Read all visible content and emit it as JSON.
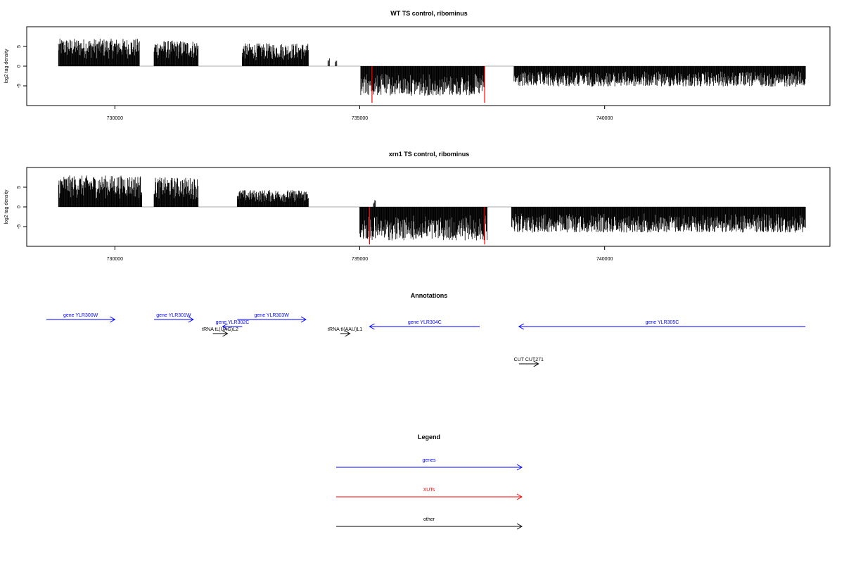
{
  "chart_data": [
    {
      "type": "bar",
      "title": "WT TS control, ribominus",
      "ylabel": "log2 tag density",
      "xlim": [
        728200,
        744600
      ],
      "ylim": [
        -10,
        10
      ],
      "x_ticks": [
        {
          "value": 730000,
          "label": "730000"
        },
        {
          "value": 735000,
          "label": "735000"
        },
        {
          "value": 740000,
          "label": "740000"
        }
      ],
      "y_ticks": [
        {
          "value": 5,
          "label": "5"
        },
        {
          "value": 0,
          "label": "0"
        },
        {
          "value": -5,
          "label": "-5"
        }
      ],
      "series": [
        {
          "strand": "+",
          "color": "#000000",
          "segments": [
            {
              "start": 728850,
              "end": 730500,
              "max": 7.0
            },
            {
              "start": 730800,
              "end": 731700,
              "max": 6.5
            },
            {
              "start": 732600,
              "end": 733950,
              "max": 5.8
            },
            {
              "start": 734350,
              "end": 734380,
              "max": 2.2
            },
            {
              "start": 734500,
              "end": 734530,
              "max": 1.4
            }
          ]
        },
        {
          "strand": "-",
          "color": "#000000",
          "segments": [
            {
              "start": 735020,
              "end": 737550,
              "max": 7.5
            },
            {
              "start": 738150,
              "end": 744100,
              "max": 5.2
            }
          ]
        }
      ],
      "highlight_bars": [
        {
          "x": 735250,
          "value": -9.3,
          "color": "#ff0000"
        },
        {
          "x": 737550,
          "value": -9.3,
          "color": "#ff0000"
        }
      ]
    },
    {
      "type": "bar",
      "title": "xrn1 TS control, ribominus",
      "ylabel": "log2 tag density",
      "xlim": [
        728200,
        744600
      ],
      "ylim": [
        -10,
        10
      ],
      "x_ticks": [
        {
          "value": 730000,
          "label": "730000"
        },
        {
          "value": 735000,
          "label": "735000"
        },
        {
          "value": 740000,
          "label": "740000"
        }
      ],
      "y_ticks": [
        {
          "value": 5,
          "label": "5"
        },
        {
          "value": 0,
          "label": "0"
        },
        {
          "value": -5,
          "label": "-5"
        }
      ],
      "series": [
        {
          "strand": "+",
          "color": "#000000",
          "segments": [
            {
              "start": 728850,
              "end": 730550,
              "max": 8.0
            },
            {
              "start": 730800,
              "end": 731700,
              "max": 7.5
            },
            {
              "start": 732500,
              "end": 733950,
              "max": 4.3
            },
            {
              "start": 735280,
              "end": 735320,
              "max": 1.9
            }
          ]
        },
        {
          "strand": "-",
          "color": "#000000",
          "segments": [
            {
              "start": 735000,
              "end": 737600,
              "max": 8.5
            },
            {
              "start": 738100,
              "end": 744100,
              "max": 6.5
            }
          ]
        }
      ],
      "highlight_bars": [
        {
          "x": 735200,
          "value": -9.5,
          "color": "#ff0000"
        },
        {
          "x": 737550,
          "value": -9.5,
          "color": "#ff0000"
        }
      ]
    }
  ],
  "annotations": {
    "title": "Annotations",
    "features": [
      {
        "label": "gene YLR300W",
        "start": 728600,
        "end": 730000,
        "strand": "+",
        "row": 0,
        "color": "#0000ff"
      },
      {
        "label": "gene YLR301W",
        "start": 730800,
        "end": 731600,
        "strand": "+",
        "row": 0,
        "color": "#0000ff"
      },
      {
        "label": "gene YLR302C",
        "start": 732200,
        "end": 732600,
        "strand": "-",
        "row": 1,
        "color": "#0000ff"
      },
      {
        "label": "gene YLR303W",
        "start": 732500,
        "end": 733900,
        "strand": "+",
        "row": 0,
        "color": "#0000ff"
      },
      {
        "label": "gene YLR304C",
        "start": 735200,
        "end": 737450,
        "strand": "-",
        "row": 1,
        "color": "#0000ff"
      },
      {
        "label": "gene YLR305C",
        "start": 738250,
        "end": 744100,
        "strand": "-",
        "row": 1,
        "color": "#0000ff"
      },
      {
        "label": "tRNA tL(UAG)L2",
        "start": 732000,
        "end": 732300,
        "strand": "+",
        "row": 2,
        "color": "#000000"
      },
      {
        "label": "tRNA tI(AAU)L1",
        "start": 734600,
        "end": 734800,
        "strand": "+",
        "row": 2,
        "color": "#000000"
      },
      {
        "label": "CUT CUT271",
        "start": 738250,
        "end": 738650,
        "strand": "+",
        "row": 3,
        "color": "#000000"
      }
    ]
  },
  "legend": {
    "title": "Legend",
    "items": [
      {
        "label": "genes",
        "color": "#0000ff"
      },
      {
        "label": "XUTs",
        "color": "#ff0000"
      },
      {
        "label": "other",
        "color": "#000000"
      }
    ]
  }
}
